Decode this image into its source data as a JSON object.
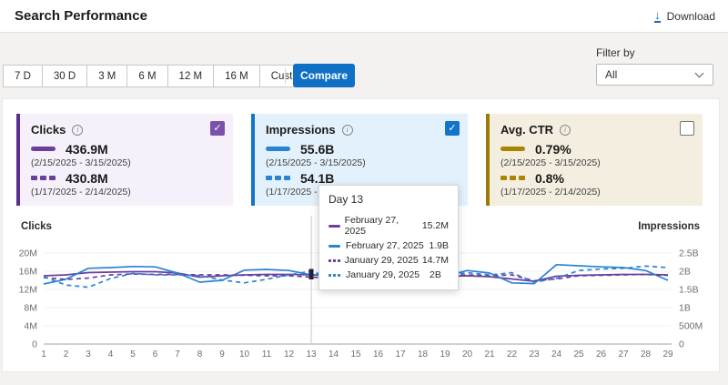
{
  "header": {
    "title": "Search Performance",
    "download_label": "Download"
  },
  "toolbar": {
    "ranges": [
      "7 D",
      "30 D",
      "3 M",
      "6 M",
      "12 M",
      "16 M",
      "Custom"
    ],
    "compare_label": "Compare",
    "filter_label": "Filter by",
    "filter_value": "All"
  },
  "cards": [
    {
      "title": "Clicks",
      "checked": true,
      "accent": "#5c2d91",
      "checkbox_color": "#7b52ab",
      "bg": "#f5f0fa",
      "color": "#6b3f9e",
      "current": {
        "value": "436.9M",
        "range": "(2/15/2025 - 3/15/2025)"
      },
      "previous": {
        "value": "430.8M",
        "range": "(1/17/2025 - 2/14/2025)"
      }
    },
    {
      "title": "Impressions",
      "checked": true,
      "accent": "#1374c9",
      "checkbox_color": "#1374c9",
      "bg": "#e3f1fc",
      "color": "#2b83d4",
      "current": {
        "value": "55.6B",
        "range": "(2/15/2025 - 3/15/2025)"
      },
      "previous": {
        "value": "54.1B",
        "range": "(1/17/2025 - 2/14/2025)"
      }
    },
    {
      "title": "Avg. CTR",
      "checked": false,
      "accent": "#9c7a08",
      "checkbox_color": null,
      "bg": "#f3eee0",
      "color": "#a98500",
      "current": {
        "value": "0.79%",
        "range": "(2/15/2025 - 3/15/2025)"
      },
      "previous": {
        "value": "0.8%",
        "range": "(1/17/2025 - 2/14/2025)"
      }
    }
  ],
  "tooltip": {
    "title": "Day 13",
    "rows": [
      {
        "style": "solid",
        "color": "#6b3f9e",
        "date": "February 27, 2025",
        "value": "15.2M"
      },
      {
        "style": "solid",
        "color": "#2b83d4",
        "date": "February 27, 2025",
        "value": "1.9B"
      },
      {
        "style": "dashed",
        "color": "#6b3f9e",
        "date": "January 29, 2025",
        "value": "14.7M"
      },
      {
        "style": "dashed",
        "color": "#2b83d4",
        "date": "January 29, 2025",
        "value": "2B"
      }
    ]
  },
  "chart_data": {
    "type": "line",
    "x": [
      1,
      2,
      3,
      4,
      5,
      6,
      7,
      8,
      9,
      10,
      11,
      12,
      13,
      14,
      15,
      16,
      17,
      18,
      19,
      20,
      21,
      22,
      23,
      24,
      25,
      26,
      27,
      28,
      29
    ],
    "xlabel": "Day",
    "highlight_x": 13,
    "grid": true,
    "left_axis": {
      "label": "Clicks",
      "ticks": [
        "0",
        "4M",
        "8M",
        "12M",
        "16M",
        "20M"
      ],
      "max": 20,
      "unit": "M"
    },
    "right_axis": {
      "label": "Impressions",
      "ticks": [
        "0",
        "500M",
        "1B",
        "1.5B",
        "2B",
        "2.5B"
      ],
      "max": 2.5,
      "unit": "B"
    },
    "series": [
      {
        "name": "Clicks (2/15/2025 - 3/15/2025)",
        "axis": "left",
        "style": "solid",
        "color": "#6b3f9e",
        "values": [
          15.0,
          15.2,
          15.7,
          15.8,
          15.9,
          15.9,
          15.6,
          14.7,
          15.0,
          15.2,
          15.3,
          15.3,
          15.2,
          15.0,
          14.5,
          14.6,
          14.3,
          14.6,
          14.9,
          15.0,
          14.8,
          14.3,
          13.8,
          14.9,
          15.1,
          15.2,
          15.3,
          15.3,
          15.2
        ]
      },
      {
        "name": "Impressions (2/15/2025 - 3/15/2025)",
        "axis": "right",
        "style": "solid",
        "color": "#2b83d4",
        "values": [
          1.65,
          1.78,
          2.08,
          2.1,
          2.13,
          2.12,
          1.95,
          1.7,
          1.75,
          2.03,
          2.05,
          2.02,
          1.9,
          1.92,
          1.6,
          1.66,
          1.72,
          1.8,
          1.86,
          2.02,
          1.95,
          1.68,
          1.66,
          2.18,
          2.15,
          2.12,
          2.1,
          2.02,
          1.75
        ]
      },
      {
        "name": "Clicks (1/17/2025 - 2/14/2025)",
        "axis": "left",
        "style": "dashed",
        "color": "#6b3f9e",
        "values": [
          14.6,
          14.2,
          14.5,
          15.2,
          15.4,
          15.3,
          15.3,
          15.2,
          15.2,
          15.1,
          15.0,
          15.0,
          14.7,
          14.5,
          14.4,
          14.3,
          14.5,
          14.9,
          15.1,
          15.2,
          15.0,
          15.2,
          13.9,
          14.3,
          15.0,
          15.1,
          15.2,
          15.3,
          15.1
        ]
      },
      {
        "name": "Impressions (1/17/2025 - 2/14/2025)",
        "axis": "right",
        "style": "dashed",
        "color": "#2b83d4",
        "values": [
          1.85,
          1.62,
          1.56,
          1.8,
          1.94,
          1.9,
          1.9,
          1.88,
          1.76,
          1.68,
          1.78,
          1.9,
          2.0,
          1.8,
          1.56,
          1.6,
          1.64,
          1.74,
          1.88,
          1.96,
          1.9,
          1.96,
          1.7,
          1.8,
          2.02,
          2.06,
          2.08,
          2.14,
          2.1
        ]
      }
    ]
  }
}
